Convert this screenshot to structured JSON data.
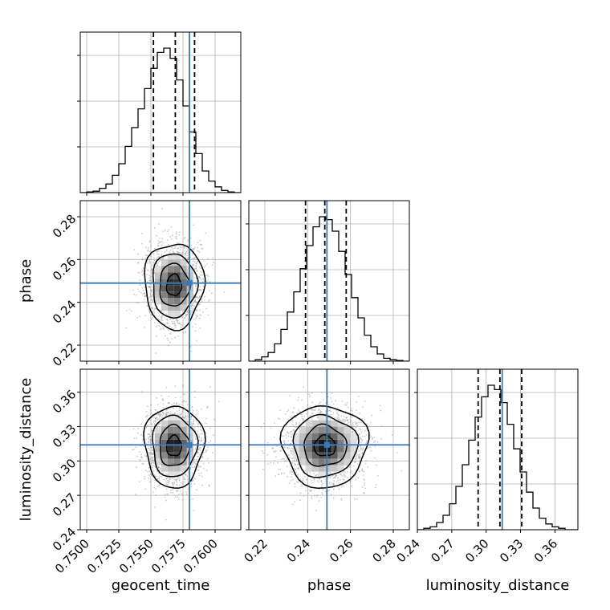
{
  "chart_data": {
    "type": "corner",
    "parameters": [
      {
        "name": "geocent_time",
        "xlabel": "geocent_time",
        "ylabel": "",
        "range": [
          0.7495,
          0.762
        ],
        "ticks": [
          0.75,
          0.7525,
          0.755,
          0.7575,
          0.76
        ],
        "tick_labels": [
          "0.7500",
          "0.7525",
          "0.7550",
          "0.7575",
          "0.7600"
        ],
        "truth": 0.758,
        "quantiles": [
          0.7552,
          0.7569,
          0.7584
        ],
        "histogram": [
          0.0,
          0.005,
          0.01,
          0.03,
          0.06,
          0.12,
          0.2,
          0.32,
          0.45,
          0.58,
          0.72,
          0.86,
          0.97,
          1.0,
          0.93,
          0.78,
          0.6,
          0.42,
          0.27,
          0.15,
          0.08,
          0.04,
          0.015,
          0.005,
          0.0
        ]
      },
      {
        "name": "phase",
        "xlabel": "phase",
        "ylabel": "phase",
        "range": [
          0.2125,
          0.2875
        ],
        "ticks": [
          0.22,
          0.24,
          0.26,
          0.28
        ],
        "tick_labels": [
          "0.22",
          "0.24",
          "0.26",
          "0.28"
        ],
        "truth": 0.249,
        "quantiles": [
          0.239,
          0.248,
          0.258
        ],
        "histogram": [
          0.0,
          0.01,
          0.03,
          0.06,
          0.12,
          0.22,
          0.34,
          0.48,
          0.64,
          0.8,
          0.93,
          1.0,
          0.98,
          0.9,
          0.76,
          0.6,
          0.44,
          0.3,
          0.18,
          0.1,
          0.05,
          0.02,
          0.01,
          0.005,
          0.0
        ]
      },
      {
        "name": "luminosity_distance",
        "xlabel": "luminosity_distance",
        "ylabel": "luminosity_distance",
        "range": [
          0.24,
          0.38
        ],
        "ticks": [
          0.24,
          0.27,
          0.3,
          0.33,
          0.36
        ],
        "tick_labels": [
          "0.24",
          "0.27",
          "0.30",
          "0.33",
          "0.36"
        ],
        "truth": 0.314,
        "quantiles": [
          0.293,
          0.312,
          0.331
        ],
        "histogram": [
          0.0,
          0.01,
          0.02,
          0.05,
          0.1,
          0.18,
          0.3,
          0.45,
          0.62,
          0.78,
          0.92,
          1.0,
          0.97,
          0.88,
          0.73,
          0.56,
          0.4,
          0.26,
          0.15,
          0.08,
          0.04,
          0.02,
          0.01,
          0.0,
          0.0
        ]
      }
    ],
    "pairs": [
      {
        "x": "geocent_time",
        "y": "phase",
        "mean": [
          0.7568,
          0.248
        ],
        "std": [
          0.0011,
          0.0095
        ]
      },
      {
        "x": "geocent_time",
        "y": "luminosity_distance",
        "mean": [
          0.7568,
          0.313
        ],
        "std": [
          0.0011,
          0.017
        ]
      },
      {
        "x": "phase",
        "y": "luminosity_distance",
        "mean": [
          0.248,
          0.313
        ],
        "std": [
          0.0095,
          0.017
        ]
      }
    ],
    "contour_levels_sigma": [
      0.5,
      1.0,
      1.5,
      2.0
    ],
    "grid": true,
    "colors": {
      "truth_line": "#3a7ab8",
      "histogram": "#000000",
      "quantile_line": "#000000",
      "scatter": "#8c8c8c",
      "grid": "#b0b0b0"
    }
  }
}
